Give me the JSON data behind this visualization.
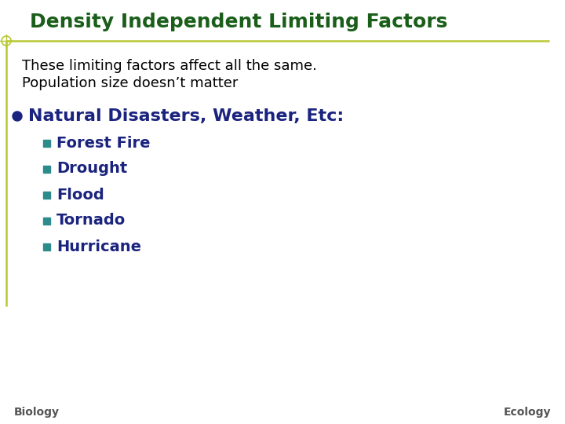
{
  "title": "Density Independent Limiting Factors",
  "title_color": "#1a5e1a",
  "subtitle_line1": "These limiting factors affect all the same.",
  "subtitle_line2": "Population size doesn’t matter",
  "subtitle_color": "#000000",
  "bullet_text": "Natural Disasters, Weather, Etc:",
  "bullet_color": "#1a237e",
  "bullet_dot_color": "#1a237e",
  "sub_bullets": [
    "Forest Fire",
    "Drought",
    "Flood",
    "Tornado",
    "Hurricane"
  ],
  "sub_bullet_color": "#1a237e",
  "sub_bullet_square_color": "#2e8b8b",
  "footer_left": "Biology",
  "footer_right": "Ecology",
  "footer_color": "#555555",
  "bg_color": "#ffffff",
  "line_color": "#b8c832",
  "left_bar_color": "#b8c832",
  "crosshair_color": "#b8c832",
  "title_fontsize": 18,
  "subtitle_fontsize": 13,
  "bullet_fontsize": 16,
  "sub_bullet_fontsize": 14,
  "footer_fontsize": 10
}
